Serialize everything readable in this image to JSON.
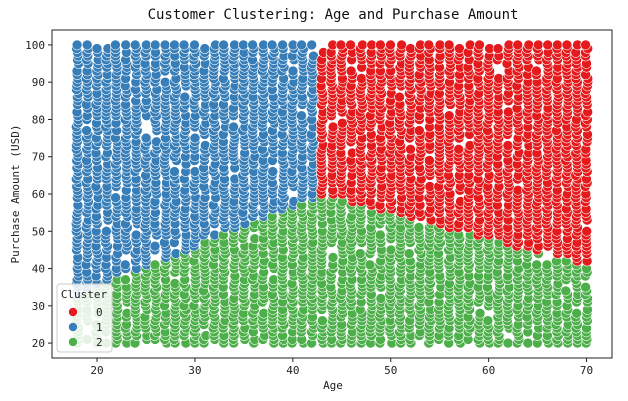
{
  "chart_data": {
    "type": "scatter",
    "title": "Customer Clustering: Age and Purchase Amount",
    "xlabel": "Age",
    "ylabel": "Purchase Amount (USD)",
    "xlim": [
      15.4,
      72.6
    ],
    "ylim": [
      16,
      104
    ],
    "xticks": [
      20,
      30,
      40,
      50,
      60,
      70
    ],
    "yticks": [
      20,
      30,
      40,
      50,
      60,
      70,
      80,
      90,
      100
    ],
    "grid": false,
    "legend": {
      "title": "Cluster",
      "placement": "lower-left"
    },
    "series": [
      {
        "name": "0",
        "color": "#e41a1c",
        "region": {
          "age": [
            43,
            70
          ],
          "purchase": [
            43,
            100
          ],
          "rule": "above boundary line from (43, 60) to (70, 41)"
        }
      },
      {
        "name": "1",
        "color": "#377eb8",
        "region": {
          "age": [
            18,
            43
          ],
          "purchase": [
            31,
            100
          ],
          "rule": "above boundary line from (18, 33) to (43, 60)"
        }
      },
      {
        "name": "2",
        "color": "#4daf4a",
        "region": {
          "age": [
            18,
            70
          ],
          "purchase": [
            20,
            64
          ],
          "rule": "below the boundary lines"
        }
      }
    ],
    "point_grid": {
      "age_range": [
        18,
        70
      ],
      "purchase_range": [
        20,
        100
      ]
    }
  }
}
